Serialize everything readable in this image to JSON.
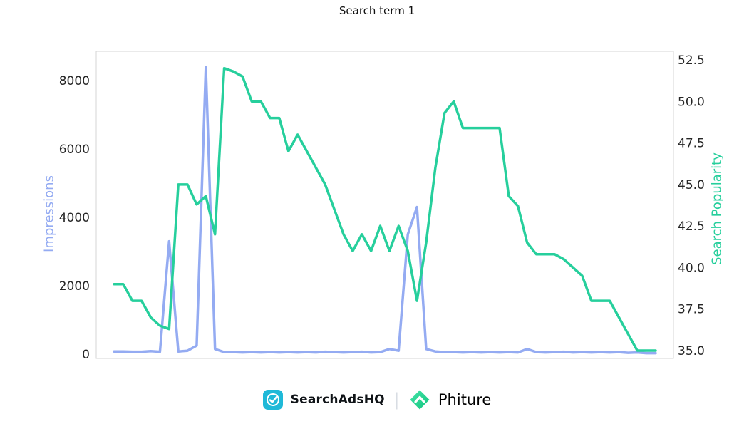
{
  "title": "Search term 1",
  "footer": {
    "brand1": "SearchAdsHQ",
    "separator": "|",
    "brand2": "Phiture"
  },
  "colors": {
    "impressions_line": "#94abf2",
    "popularity_line": "#26cf9c",
    "tick_text": "#262626",
    "searchadshq_teal": "#1fb9d8",
    "phiture_green_light": "#45e3a8",
    "phiture_green_dark": "#12c57f"
  },
  "chart_data": {
    "type": "line",
    "title": "Search term 1",
    "x_axis": {
      "tick_labels_visible": false
    },
    "left_axis": {
      "label": "Impressions",
      "ticks": [
        0,
        2000,
        4000,
        6000,
        8000
      ],
      "range": [
        0,
        8800
      ]
    },
    "right_axis": {
      "label": "Search Popularity",
      "ticks": [
        "35.0",
        "37.5",
        "40.0",
        "42.5",
        "45.0",
        "47.5",
        "50.0",
        "52.5"
      ],
      "range": [
        35,
        52.5
      ]
    },
    "legend": "none",
    "grid": false,
    "series": [
      {
        "name": "Impressions",
        "axis": "left",
        "color": "#94abf2",
        "values": [
          80,
          80,
          70,
          70,
          90,
          70,
          3300,
          80,
          100,
          250,
          8400,
          150,
          60,
          60,
          50,
          60,
          50,
          60,
          50,
          60,
          50,
          60,
          50,
          70,
          60,
          50,
          60,
          70,
          50,
          60,
          150,
          100,
          3500,
          4300,
          150,
          80,
          60,
          60,
          50,
          60,
          50,
          60,
          50,
          60,
          50,
          150,
          60,
          50,
          60,
          70,
          50,
          60,
          50,
          60,
          50,
          60,
          40,
          50,
          30,
          30
        ]
      },
      {
        "name": "Search Popularity",
        "axis": "right",
        "color": "#26cf9c",
        "values": [
          39,
          39,
          38,
          38,
          37,
          36.5,
          36.3,
          45,
          45,
          43.8,
          44.3,
          42,
          52,
          51.8,
          51.5,
          50,
          50,
          49,
          49,
          47,
          48,
          47,
          46,
          45,
          43.5,
          42,
          41,
          42,
          41,
          42.5,
          41,
          42.5,
          41,
          38,
          41.5,
          46,
          49.3,
          50,
          48.4,
          48.4,
          48.4,
          48.4,
          48.4,
          44.3,
          43.7,
          41.5,
          40.8,
          40.8,
          40.8,
          40.5,
          40,
          39.5,
          38,
          38,
          38,
          37,
          36,
          35,
          35,
          35
        ]
      }
    ]
  }
}
